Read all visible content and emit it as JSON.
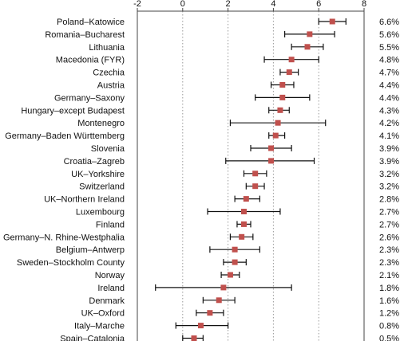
{
  "chart_data": {
    "type": "forest",
    "xlim": [
      -2,
      8
    ],
    "xticks": [
      -2,
      0,
      2,
      4,
      6,
      8
    ],
    "grid": "vertical-dotted",
    "marker_color": "#c0504d",
    "rows": [
      {
        "label": "Poland–Katowice",
        "value": 6.6,
        "low": 6.0,
        "high": 7.2,
        "value_label": "6.6%"
      },
      {
        "label": "Romania–Bucharest",
        "value": 5.6,
        "low": 4.5,
        "high": 6.7,
        "value_label": "5.6%"
      },
      {
        "label": "Lithuania",
        "value": 5.5,
        "low": 4.8,
        "high": 6.2,
        "value_label": "5.5%"
      },
      {
        "label": "Macedonia (FYR)",
        "value": 4.8,
        "low": 3.6,
        "high": 6.0,
        "value_label": "4.8%"
      },
      {
        "label": "Czechia",
        "value": 4.7,
        "low": 4.3,
        "high": 5.1,
        "value_label": "4.7%"
      },
      {
        "label": "Austria",
        "value": 4.4,
        "low": 3.9,
        "high": 4.9,
        "value_label": "4.4%"
      },
      {
        "label": "Germany–Saxony",
        "value": 4.4,
        "low": 3.2,
        "high": 5.6,
        "value_label": "4.4%"
      },
      {
        "label": "Hungary–except Budapest",
        "value": 4.3,
        "low": 3.8,
        "high": 4.7,
        "value_label": "4.3%"
      },
      {
        "label": "Montenegro",
        "value": 4.2,
        "low": 2.1,
        "high": 6.3,
        "value_label": "4.2%"
      },
      {
        "label": "Germany–Baden Württemberg",
        "value": 4.1,
        "low": 3.8,
        "high": 4.5,
        "value_label": "4.1%"
      },
      {
        "label": "Slovenia",
        "value": 3.9,
        "low": 3.0,
        "high": 4.8,
        "value_label": "3.9%"
      },
      {
        "label": "Croatia–Zagreb",
        "value": 3.9,
        "low": 1.9,
        "high": 5.8,
        "value_label": "3.9%"
      },
      {
        "label": "UK–Yorkshire",
        "value": 3.2,
        "low": 2.7,
        "high": 3.7,
        "value_label": "3.2%"
      },
      {
        "label": "Switzerland",
        "value": 3.2,
        "low": 2.8,
        "high": 3.6,
        "value_label": "3.2%"
      },
      {
        "label": "UK–Northern Ireland",
        "value": 2.8,
        "low": 2.3,
        "high": 3.4,
        "value_label": "2.8%"
      },
      {
        "label": "Luxembourg",
        "value": 2.7,
        "low": 1.1,
        "high": 4.3,
        "value_label": "2.7%"
      },
      {
        "label": "Finland",
        "value": 2.7,
        "low": 2.4,
        "high": 3.0,
        "value_label": "2.7%"
      },
      {
        "label": "Germany–N. Rhine-Westphalia",
        "value": 2.6,
        "low": 2.1,
        "high": 3.1,
        "value_label": "2.6%"
      },
      {
        "label": "Belgium–Antwerp",
        "value": 2.3,
        "low": 1.2,
        "high": 3.4,
        "value_label": "2.3%"
      },
      {
        "label": "Sweden–Stockholm County",
        "value": 2.3,
        "low": 1.8,
        "high": 2.8,
        "value_label": "2.3%"
      },
      {
        "label": "Norway",
        "value": 2.1,
        "low": 1.7,
        "high": 2.5,
        "value_label": "2.1%"
      },
      {
        "label": "Ireland",
        "value": 1.8,
        "low": -1.2,
        "high": 4.8,
        "value_label": "1.8%"
      },
      {
        "label": "Denmark",
        "value": 1.6,
        "low": 0.9,
        "high": 2.3,
        "value_label": "1.6%"
      },
      {
        "label": "UK–Oxford",
        "value": 1.2,
        "low": 0.6,
        "high": 1.8,
        "value_label": "1.2%"
      },
      {
        "label": "Italy–Marche",
        "value": 0.8,
        "low": -0.3,
        "high": 2.0,
        "value_label": "0.8%"
      },
      {
        "label": "Spain–Catalonia",
        "value": 0.5,
        "low": 0.0,
        "high": 0.9,
        "value_label": "0.5%"
      }
    ]
  }
}
